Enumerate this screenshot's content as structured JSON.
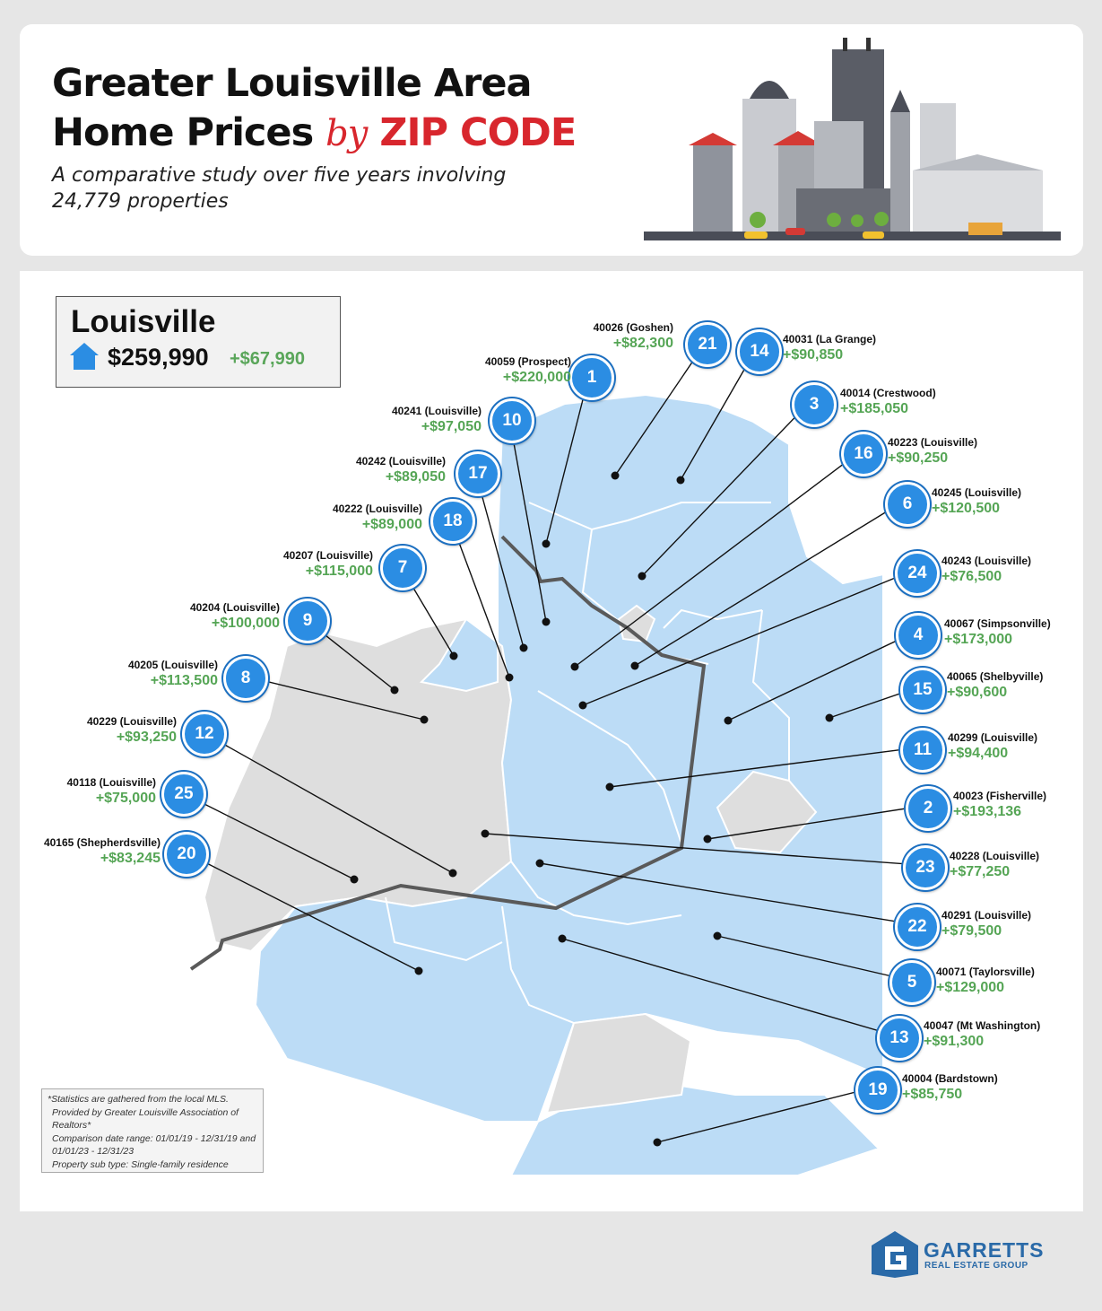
{
  "header": {
    "title_line1": "Greater Louisville Area",
    "title_line2_main": "Home Prices",
    "title_line2_by": "by",
    "title_line2_zip": "ZIP CODE",
    "subtitle": "A comparative study over five years involving 24,779 properties"
  },
  "legend": {
    "city": "Louisville",
    "price": "$259,990",
    "change": "+$67,990",
    "icon": "house-icon"
  },
  "zips": [
    {
      "rank": "1",
      "zip": "40059 (Prospect)",
      "change": "+$220,000"
    },
    {
      "rank": "2",
      "zip": "40023 (Fisherville)",
      "change": "+$193,136"
    },
    {
      "rank": "3",
      "zip": "40014 (Crestwood)",
      "change": "+$185,050"
    },
    {
      "rank": "4",
      "zip": "40067 (Simpsonville)",
      "change": "+$173,000"
    },
    {
      "rank": "5",
      "zip": "40071 (Taylorsville)",
      "change": "+$129,000"
    },
    {
      "rank": "6",
      "zip": "40245 (Louisville)",
      "change": "+$120,500"
    },
    {
      "rank": "7",
      "zip": "40207 (Louisville)",
      "change": "+$115,000"
    },
    {
      "rank": "8",
      "zip": "40205 (Louisville)",
      "change": "+$113,500"
    },
    {
      "rank": "9",
      "zip": "40204 (Louisville)",
      "change": "+$100,000"
    },
    {
      "rank": "10",
      "zip": "40241 (Louisville)",
      "change": "+$97,050"
    },
    {
      "rank": "11",
      "zip": "40299 (Louisville)",
      "change": "+$94,400"
    },
    {
      "rank": "12",
      "zip": "40229 (Louisville)",
      "change": "+$93,250"
    },
    {
      "rank": "13",
      "zip": "40047 (Mt Washington)",
      "change": "+$91,300"
    },
    {
      "rank": "14",
      "zip": "40031 (La Grange)",
      "change": "+$90,850"
    },
    {
      "rank": "15",
      "zip": "40065 (Shelbyville)",
      "change": "+$90,600"
    },
    {
      "rank": "16",
      "zip": "40223 (Louisville)",
      "change": "+$90,250"
    },
    {
      "rank": "17",
      "zip": "40242 (Louisville)",
      "change": "+$89,050"
    },
    {
      "rank": "18",
      "zip": "40222 (Louisville)",
      "change": "+$89,000"
    },
    {
      "rank": "19",
      "zip": "40004 (Bardstown)",
      "change": "+$85,750"
    },
    {
      "rank": "20",
      "zip": "40165 (Shepherdsville)",
      "change": "+$83,245"
    },
    {
      "rank": "21",
      "zip": "40026 (Goshen)",
      "change": "+$82,300"
    },
    {
      "rank": "22",
      "zip": "40291 (Louisville)",
      "change": "+$79,500"
    },
    {
      "rank": "23",
      "zip": "40228 (Louisville)",
      "change": "+$77,250"
    },
    {
      "rank": "24",
      "zip": "40243 (Louisville)",
      "change": "+$76,500"
    },
    {
      "rank": "25",
      "zip": "40118 (Louisville)",
      "change": "+$75,000"
    }
  ],
  "notes": [
    "*Statistics are gathered from the local MLS.",
    "Provided by Greater Louisville Association of Realtors*",
    "Comparison date range: 01/01/19 - 12/31/19  and",
    "01/01/23 - 12/31/23",
    "Property sub type: Single-family residence"
  ],
  "logo": {
    "name": "GARRETTS",
    "sub": "REAL ESTATE GROUP"
  },
  "colors": {
    "region": "#bcdcf6",
    "outside": "#dedede",
    "badge": "#2b8de3",
    "gain": "#55a555",
    "accent": "#d8262d"
  }
}
